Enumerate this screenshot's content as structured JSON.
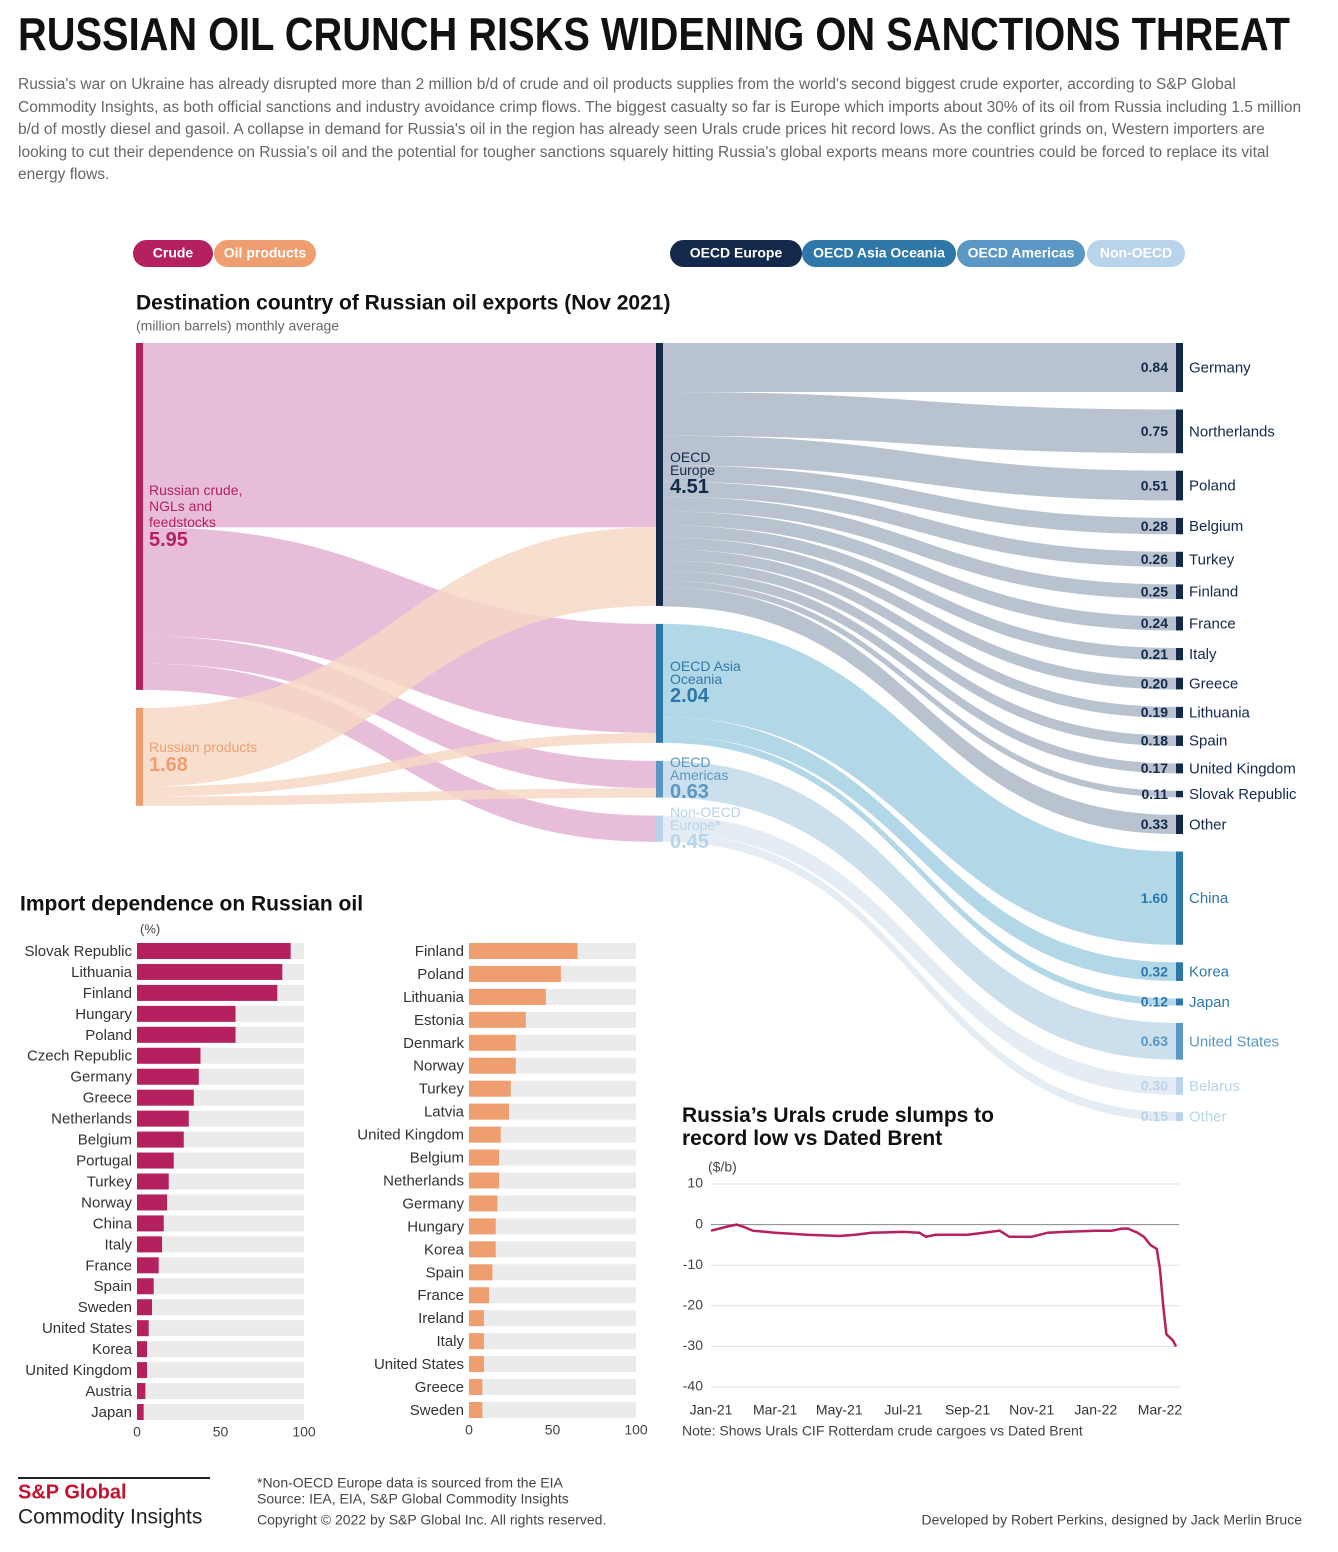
{
  "header": {
    "title": "RUSSIAN OIL CRUNCH RISKS WIDENING ON SANCTIONS THREAT",
    "intro": "Russia's war on Ukraine has already disrupted more than 2 million b/d of crude and oil products supplies from the world's second biggest crude exporter, according to S&P Global Commodity Insights, as both official sanctions and industry avoidance crimp flows. The biggest casualty so far is Europe which imports about 30% of its oil from Russia including 1.5 million b/d of mostly diesel and gasoil. A collapse in demand for Russia's oil in the region has already seen Urals crude prices hit record lows. As the conflict grinds on, Western importers are looking to cut their dependence on Russia's oil and the potential for tougher sanctions squarely hitting Russia's global exports means more countries could be forced to replace its vital energy flows."
  },
  "legend": {
    "sources": [
      {
        "name": "Crude",
        "color": "#b5215f"
      },
      {
        "name": "Oil products",
        "color": "#ef9f6f"
      }
    ],
    "regions": [
      {
        "name": "OECD Europe",
        "color": "#13294b"
      },
      {
        "name": "OECD Asia Oceania",
        "color": "#2e78a9"
      },
      {
        "name": "OECD Americas",
        "color": "#5b97c4"
      },
      {
        "name": "Non-OECD",
        "color": "#b8d3ea"
      }
    ]
  },
  "chart_data": [
    {
      "type": "sankey",
      "title": "Destination country of Russian oil exports (Nov 2021)",
      "subtitle": "(million barrels) monthly average",
      "sources": [
        {
          "label": "Russian crude, NGLs and feedstocks",
          "value": 5.95,
          "color": "#b5215f",
          "link_color": "#e3b2d3",
          "links": [
            3.16,
            1.87,
            0.47,
            0.45
          ]
        },
        {
          "label": "Russian products",
          "value": 1.68,
          "color": "#ef9f6f",
          "link_color": "#f6d8c4",
          "links": [
            1.35,
            0.17,
            0.16,
            null
          ]
        }
      ],
      "regions": [
        {
          "label": "OECD Europe",
          "value": 4.51,
          "color": "#13294b",
          "link_color": "#b1bccb",
          "destinations": {
            "names": [
              "Germany",
              "Northerlands",
              "Poland",
              "Belgium",
              "Turkey",
              "Finland",
              "France",
              "Italy",
              "Greece",
              "Lithuania",
              "Spain",
              "United Kingdom",
              "Slovak Republic",
              "Other"
            ],
            "values": [
              0.84,
              0.75,
              0.51,
              0.28,
              0.26,
              0.25,
              0.24,
              0.21,
              0.2,
              0.19,
              0.18,
              0.17,
              0.11,
              0.33
            ],
            "value_labels": [
              "0.84",
              "0.75",
              "0.51",
              "0.28",
              "0.26",
              "0.25",
              "0.24",
              "0.21",
              "0.20",
              "0.19",
              "0.18",
              "0.17",
              "0.11",
              "0.33"
            ]
          }
        },
        {
          "label": "OECD Asia Oceania",
          "value": 2.04,
          "color": "#2e78a9",
          "link_color": "#aad4e6",
          "destinations": {
            "names": [
              "China",
              "Korea",
              "Japan"
            ],
            "values": [
              1.6,
              0.32,
              0.12
            ],
            "value_labels": [
              "1.60",
              "0.32",
              "0.12"
            ]
          }
        },
        {
          "label": "OECD Americas",
          "value": 0.63,
          "color": "#5b97c4",
          "link_color": "#c7dcea",
          "destinations": {
            "names": [
              "United States"
            ],
            "values": [
              0.63
            ],
            "value_labels": [
              "0.63"
            ]
          }
        },
        {
          "label": "Non-OECD Europe*",
          "value": 0.45,
          "color": "#b8d3ea",
          "link_color": "#e2ebf3",
          "destinations": {
            "names": [
              "Belarus",
              "Other"
            ],
            "values": [
              0.3,
              0.15
            ],
            "value_labels": [
              "0.30",
              "0.15"
            ]
          }
        }
      ]
    },
    {
      "type": "hbar",
      "title": "Import dependence on Russian oil",
      "subtitle": "(%)",
      "color": "#b5215f",
      "background": "#ebebeb",
      "categories": [
        "Slovak Republic",
        "Lithuania",
        "Finland",
        "Hungary",
        "Poland",
        "Czech Republic",
        "Germany",
        "Greece",
        "Netherlands",
        "Belgium",
        "Portugal",
        "Turkey",
        "Norway",
        "China",
        "Italy",
        "France",
        "Spain",
        "Sweden",
        "United States",
        "Korea",
        "United Kingdom",
        "Austria",
        "Japan"
      ],
      "values": [
        92,
        87,
        84,
        59,
        59,
        38,
        37,
        34,
        31,
        28,
        22,
        19,
        18,
        16,
        15,
        13,
        10,
        9,
        7,
        6,
        6,
        5,
        4
      ],
      "xlim": [
        0,
        100
      ],
      "xticks": [
        0,
        50,
        100
      ]
    },
    {
      "type": "hbar",
      "color": "#ef9f6f",
      "background": "#ebebeb",
      "categories": [
        "Finland",
        "Poland",
        "Lithuania",
        "Estonia",
        "Denmark",
        "Norway",
        "Turkey",
        "Latvia",
        "United Kingdom",
        "Belgium",
        "Netherlands",
        "Germany",
        "Hungary",
        "Korea",
        "Spain",
        "France",
        "Ireland",
        "Italy",
        "United States",
        "Greece",
        "Sweden"
      ],
      "values": [
        65,
        55,
        46,
        34,
        28,
        28,
        25,
        24,
        19,
        18,
        18,
        17,
        16,
        16,
        14,
        12,
        9,
        9,
        9,
        8,
        8
      ],
      "xlim": [
        0,
        100
      ],
      "xticks": [
        0,
        50,
        100
      ]
    },
    {
      "type": "line",
      "title": "Russia’s Urals crude slumps to record low vs Dated Brent",
      "ylabel": "($/b)",
      "note": "Note: Shows Urals CIF Rotterdam crude cargoes vs  Dated Brent",
      "color": "#b5215f",
      "x": [
        0,
        0.5,
        0.8,
        1,
        1.3,
        2,
        3,
        4,
        4.5,
        5,
        6,
        6.5,
        6.7,
        7,
        8,
        8.5,
        9,
        9.3,
        10,
        10.5,
        11,
        12,
        12.5,
        12.8,
        13,
        13.3,
        13.5,
        13.7,
        13.9,
        14,
        14.1,
        14.2,
        14.4,
        14.5
      ],
      "values": [
        -1.5,
        -0.5,
        0,
        -0.5,
        -1.5,
        -2,
        -2.5,
        -2.8,
        -2.5,
        -2,
        -1.8,
        -2,
        -3,
        -2.5,
        -2.5,
        -2,
        -1.5,
        -3,
        -3,
        -2,
        -1.8,
        -1.5,
        -1.5,
        -1,
        -1,
        -2,
        -3,
        -5,
        -6,
        -11,
        -20,
        -27,
        -28.5,
        -30
      ],
      "xlim": [
        0,
        14.6
      ],
      "xticks": [
        {
          "value": 0,
          "label": "Jan-21"
        },
        {
          "value": 2,
          "label": "Mar-21"
        },
        {
          "value": 4,
          "label": "May-21"
        },
        {
          "value": 6,
          "label": "Jul-21"
        },
        {
          "value": 8,
          "label": "Sep-21"
        },
        {
          "value": 10,
          "label": "Nov-21"
        },
        {
          "value": 12,
          "label": "Jan-22"
        },
        {
          "value": 14,
          "label": "Mar-22"
        }
      ],
      "ylim": [
        -40,
        10
      ],
      "yticks": [
        10,
        0,
        -10,
        -20,
        -30,
        -40
      ],
      "grid": true
    }
  ],
  "footer": {
    "brand": "S&P Global",
    "brand_sub": "Commodity Insights",
    "notes": [
      "*Non-OECD Europe data is sourced from the EIA",
      "Source: IEA, EIA, S&P Global Commodity Insights",
      "Copyright © 2022 by S&P Global Inc. All rights reserved."
    ],
    "credit": "Developed by Robert Perkins,  designed by Jack Merlin Bruce"
  }
}
